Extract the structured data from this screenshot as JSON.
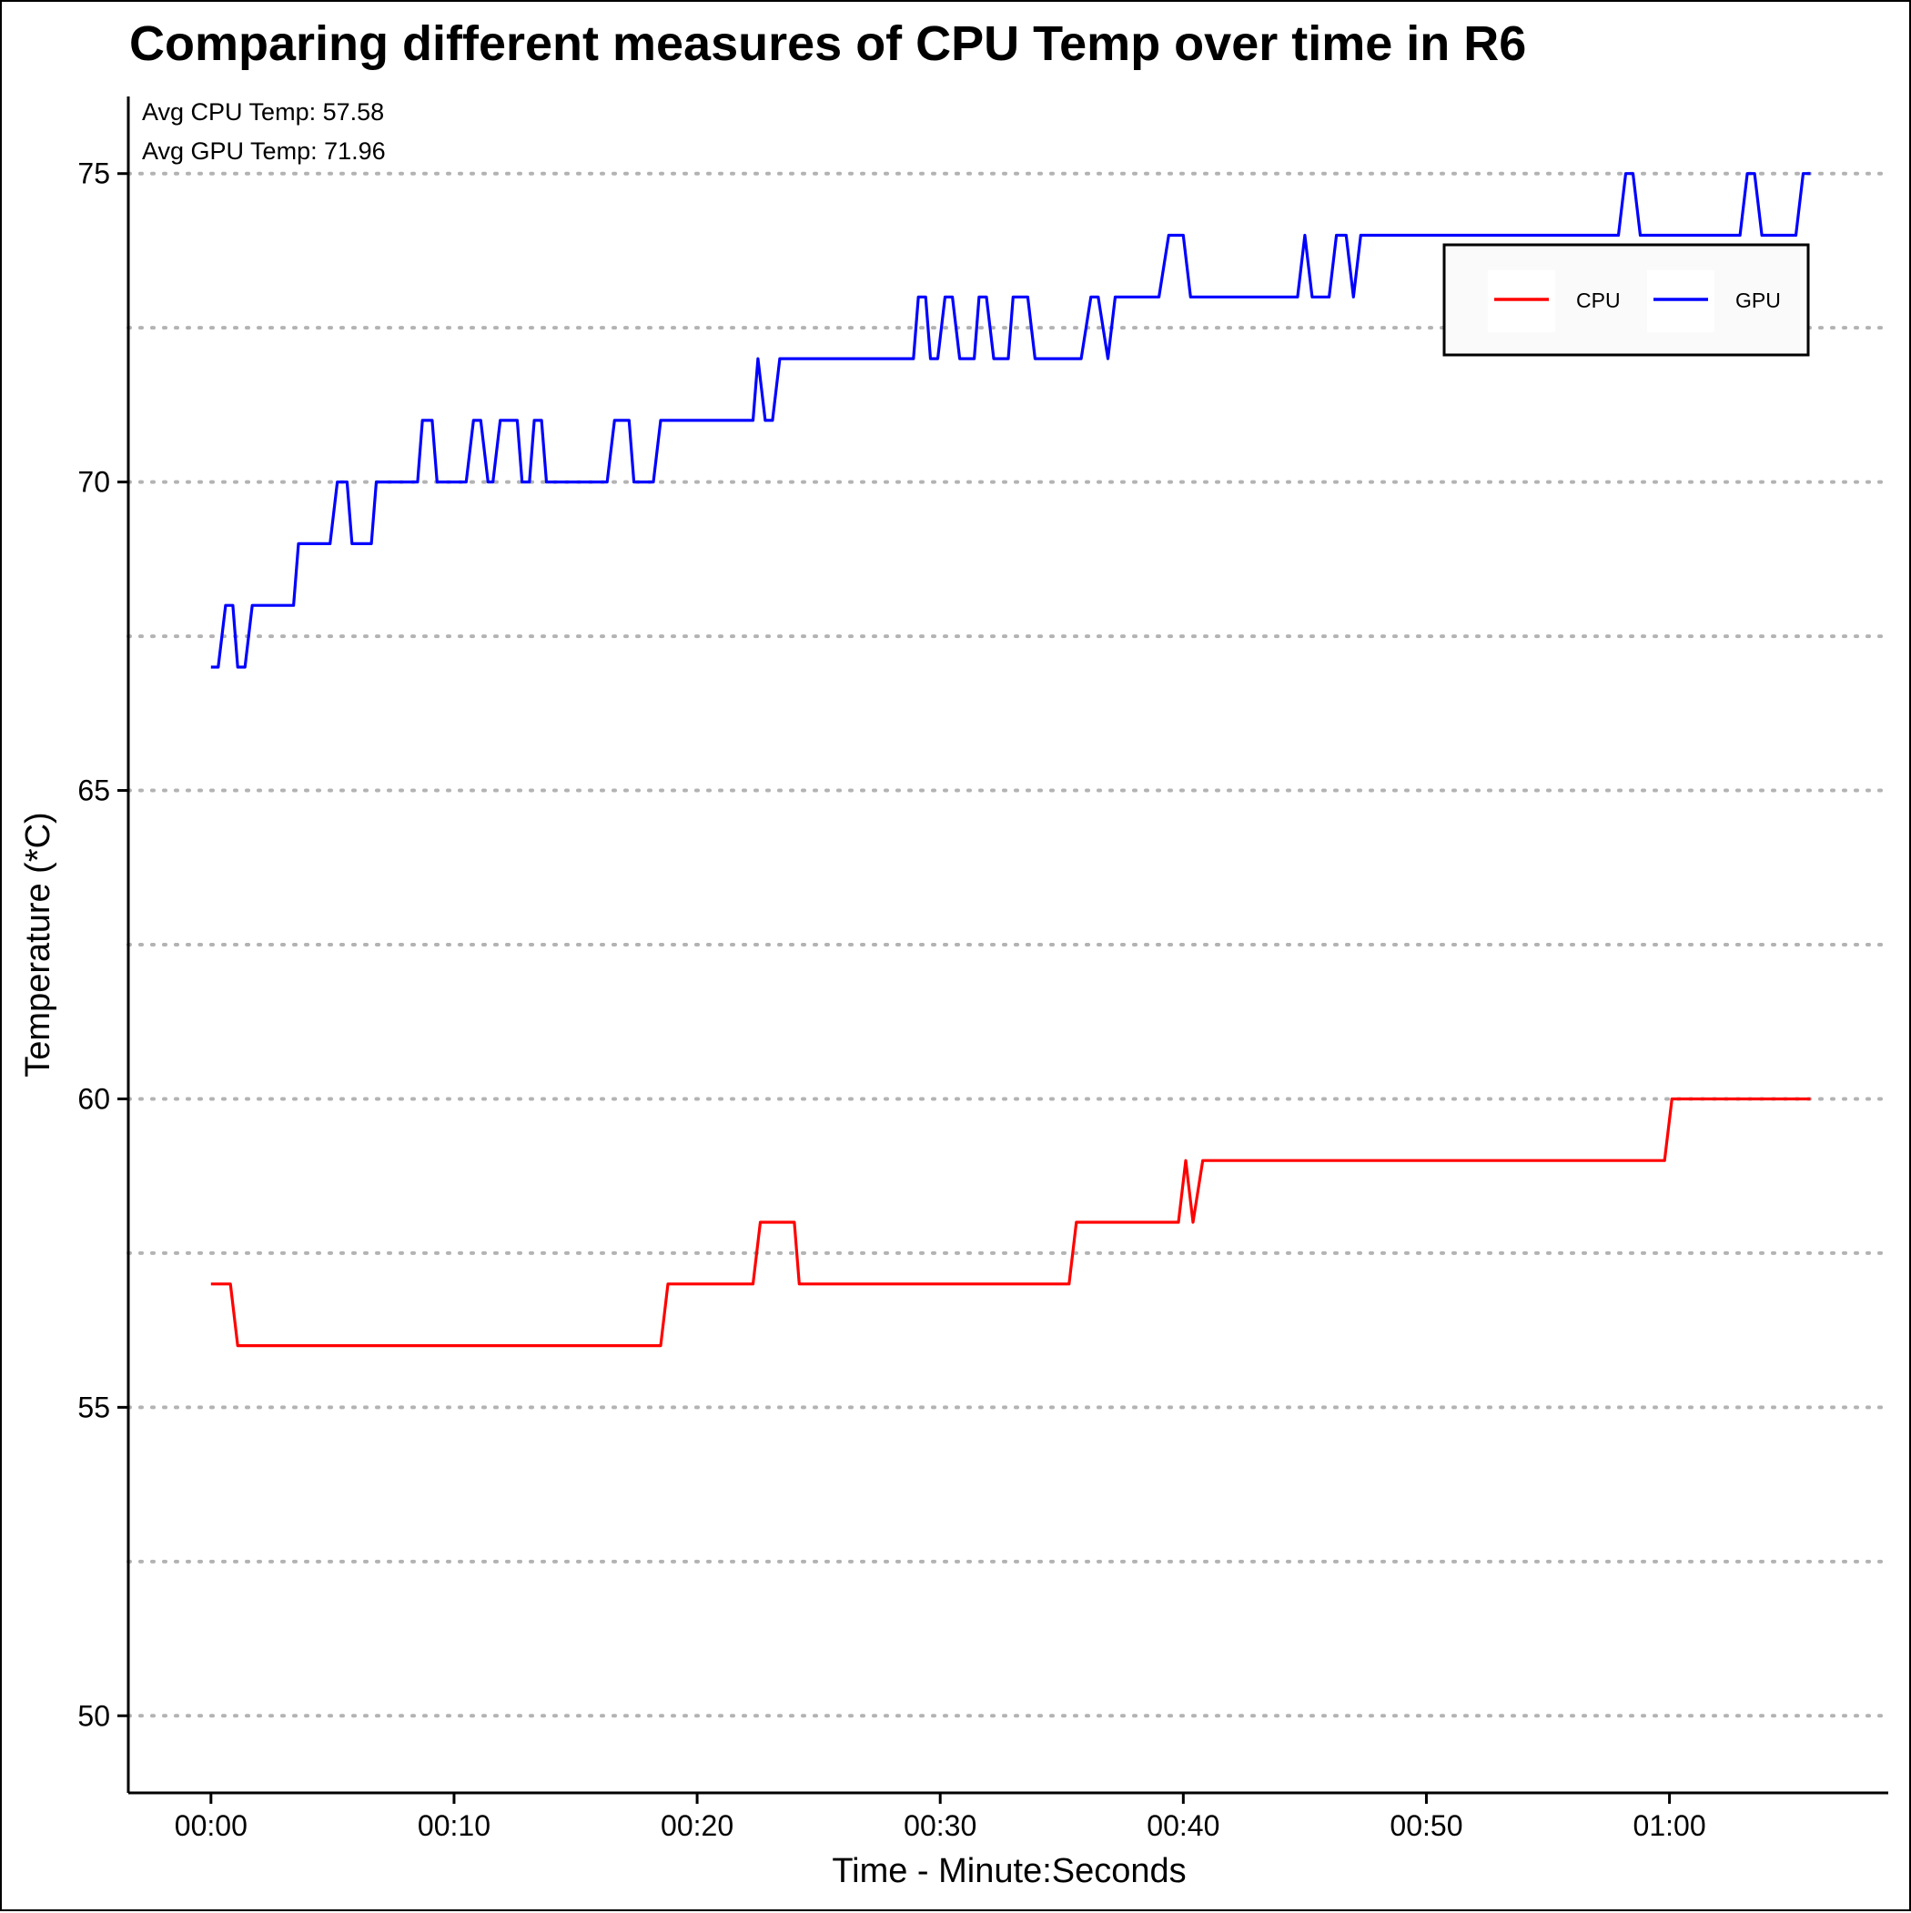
{
  "chart_data": {
    "type": "line",
    "title": "Comparing different measures of CPU Temp over time in R6",
    "xlabel": "Time - Minute:Seconds",
    "ylabel": "Temperature (*C)",
    "xlim": [
      -3.4,
      69
    ],
    "ylim": [
      48.75,
      76.25
    ],
    "x_ticks": [
      0,
      10,
      20,
      30,
      40,
      50,
      60
    ],
    "x_tick_labels": [
      "00:00",
      "00:10",
      "00:20",
      "00:30",
      "00:40",
      "00:50",
      "01:00"
    ],
    "y_ticks": [
      50,
      55,
      60,
      65,
      70,
      75
    ],
    "y_tick_labels": [
      "50",
      "55",
      "60",
      "65",
      "70",
      "75"
    ],
    "y_grid_dotted": [
      50,
      52.5,
      55,
      57.5,
      60,
      62.5,
      65,
      67.5,
      70,
      72.5,
      75
    ],
    "annotations": [
      "Avg CPU Temp: 57.58",
      "Avg GPU Temp: 71.96"
    ],
    "legend_position": "top-right",
    "series": [
      {
        "name": "CPU",
        "color": "#ff0000",
        "x": [
          0,
          0.8,
          1.1,
          18.5,
          18.8,
          22.3,
          22.6,
          24.0,
          24.2,
          35.3,
          35.6,
          39.8,
          40.1,
          40.4,
          40.8,
          59.8,
          60.1,
          65.8
        ],
        "y": [
          57,
          57,
          56,
          56,
          57,
          57,
          58,
          58,
          57,
          57,
          58,
          58,
          59,
          58,
          59,
          59,
          60,
          60
        ]
      },
      {
        "name": "GPU",
        "color": "#0000ff",
        "x": [
          0,
          0.3,
          0.6,
          0.9,
          1.1,
          1.4,
          1.7,
          3.4,
          3.6,
          4.9,
          5.2,
          5.6,
          5.8,
          6.6,
          6.8,
          8.5,
          8.7,
          9.1,
          9.3,
          10.5,
          10.8,
          11.1,
          11.4,
          11.6,
          11.9,
          12.6,
          12.8,
          13.1,
          13.3,
          13.6,
          13.8,
          16.3,
          16.6,
          17.2,
          17.4,
          18.2,
          18.5,
          22.3,
          22.5,
          22.8,
          23.1,
          23.4,
          28.9,
          29.1,
          29.4,
          29.6,
          29.9,
          30.2,
          30.5,
          30.8,
          31.4,
          31.6,
          31.9,
          32.2,
          32.8,
          33.0,
          33.6,
          33.9,
          35.8,
          36.2,
          36.5,
          36.9,
          37.2,
          39.0,
          39.4,
          40.0,
          40.3,
          44.7,
          45.0,
          45.3,
          46.0,
          46.3,
          46.7,
          47.0,
          47.3,
          51.2,
          51.4,
          52.1,
          52.3,
          57.9,
          58.2,
          58.5,
          58.8,
          62.9,
          63.2,
          63.5,
          63.8,
          65.2,
          65.5,
          65.8
        ],
        "y": [
          67,
          67,
          68,
          68,
          67,
          67,
          68,
          68,
          69,
          69,
          70,
          70,
          69,
          69,
          70,
          70,
          71,
          71,
          70,
          70,
          71,
          71,
          70,
          70,
          71,
          71,
          70,
          70,
          71,
          71,
          70,
          70,
          71,
          71,
          70,
          70,
          71,
          71,
          72,
          71,
          71,
          72,
          72,
          73,
          73,
          72,
          72,
          73,
          73,
          72,
          72,
          73,
          73,
          72,
          72,
          73,
          73,
          72,
          72,
          73,
          73,
          72,
          73,
          73,
          74,
          74,
          73,
          73,
          74,
          73,
          73,
          74,
          74,
          73,
          74,
          74,
          74,
          74,
          74,
          74,
          75,
          75,
          74,
          74,
          75,
          75,
          74,
          74,
          75,
          75
        ]
      }
    ]
  }
}
